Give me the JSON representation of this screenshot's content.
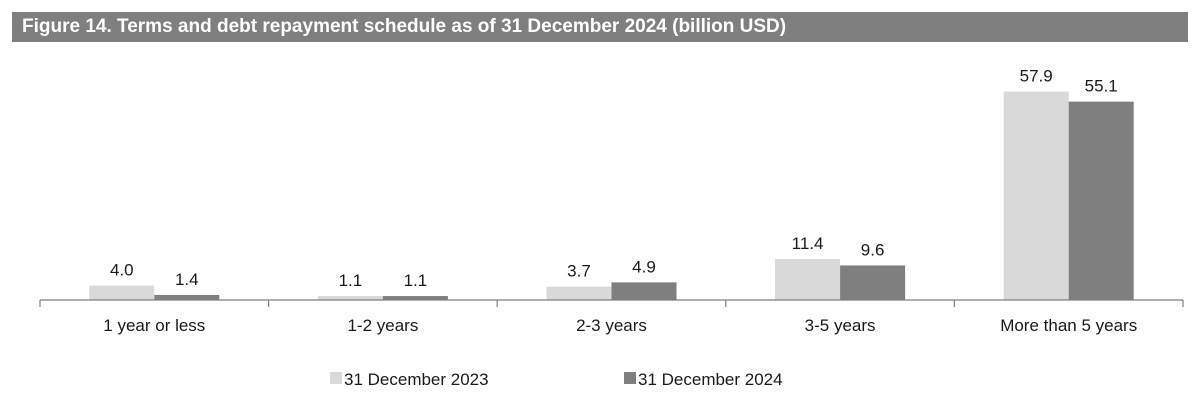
{
  "chart_data": {
    "type": "bar",
    "title": "Figure 14. Terms and debt repayment schedule as of 31 December 2024 (billion USD)",
    "categories": [
      "1 year or less",
      "1-2 years",
      "2-3 years",
      "3-5 years",
      "More than 5 years"
    ],
    "series": [
      {
        "name": "31 December 2023",
        "values": [
          4.0,
          1.1,
          3.7,
          11.4,
          57.9
        ],
        "labels": [
          "4.0",
          "1.1",
          "3.7",
          "11.4",
          "57.9"
        ],
        "color": "#d9d9d9"
      },
      {
        "name": "31 December 2024",
        "values": [
          1.4,
          1.1,
          4.9,
          9.6,
          55.1
        ],
        "labels": [
          "1.4",
          "1.1",
          "4.9",
          "9.6",
          "55.1"
        ],
        "color": "#7f7f7f"
      }
    ],
    "ylim": [
      0,
      60
    ],
    "grid": false,
    "legend": "bottom-center",
    "data_labels": true
  }
}
